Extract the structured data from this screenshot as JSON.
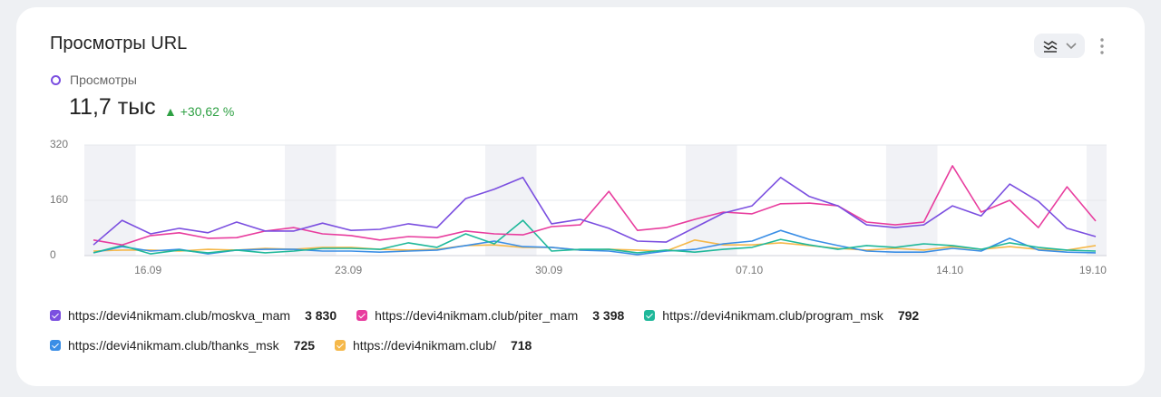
{
  "header": {
    "title": "Просмотры URL",
    "metric": "Просмотры",
    "metric_value": "11,7 тыс",
    "change": "+30,62 %"
  },
  "chart_data": {
    "type": "line",
    "categories": [
      null,
      null,
      "16.09",
      null,
      null,
      null,
      null,
      null,
      null,
      "23.09",
      null,
      null,
      null,
      null,
      null,
      null,
      "30.09",
      null,
      null,
      null,
      null,
      null,
      null,
      "07.10",
      null,
      null,
      null,
      null,
      null,
      null,
      "14.10",
      null,
      null,
      null,
      null,
      "19.10"
    ],
    "ylim": [
      0,
      320
    ],
    "yticks": [
      0,
      160,
      320
    ],
    "grid": true,
    "series": [
      {
        "name": "https://devi4nikmam.club/moskva_mam",
        "color": "#7b4fe0",
        "total": "3 830",
        "values": [
          31,
          102,
          63,
          79,
          66,
          97,
          71,
          71,
          94,
          73,
          76,
          92,
          81,
          165,
          192,
          226,
          92,
          105,
          79,
          42,
          39,
          81,
          123,
          144,
          226,
          171,
          144,
          89,
          81,
          89,
          144,
          115,
          207,
          157,
          79,
          55
        ]
      },
      {
        "name": "https://devi4nikmam.club/piter_mam",
        "color": "#e83d9e",
        "total": "3 398",
        "values": [
          45,
          31,
          58,
          66,
          50,
          52,
          71,
          81,
          63,
          58,
          45,
          55,
          52,
          71,
          63,
          60,
          84,
          89,
          186,
          73,
          81,
          105,
          126,
          121,
          150,
          152,
          144,
          97,
          89,
          97,
          260,
          126,
          160,
          81,
          199,
          100
        ]
      },
      {
        "name": "https://devi4nikmam.club/program_msk",
        "color": "#1fb89a",
        "total": "792",
        "values": [
          8,
          29,
          5,
          16,
          8,
          16,
          8,
          13,
          21,
          21,
          18,
          37,
          24,
          63,
          34,
          102,
          13,
          18,
          18,
          8,
          16,
          10,
          18,
          24,
          47,
          31,
          18,
          29,
          24,
          34,
          29,
          18,
          37,
          24,
          16,
          13
        ]
      },
      {
        "name": "https://devi4nikmam.club/thanks_msk",
        "color": "#3a8ee6",
        "total": "725",
        "values": [
          8,
          26,
          13,
          18,
          5,
          16,
          18,
          18,
          13,
          13,
          10,
          13,
          16,
          29,
          42,
          26,
          24,
          16,
          13,
          3,
          13,
          18,
          34,
          42,
          73,
          47,
          29,
          13,
          10,
          10,
          21,
          13,
          50,
          16,
          10,
          8
        ]
      },
      {
        "name": "https://devi4nikmam.club/",
        "color": "#f5b84a",
        "total": "718",
        "values": [
          13,
          16,
          16,
          13,
          18,
          16,
          21,
          18,
          24,
          24,
          18,
          16,
          18,
          29,
          31,
          24,
          24,
          16,
          18,
          16,
          13,
          45,
          31,
          31,
          37,
          29,
          21,
          16,
          21,
          16,
          26,
          18,
          26,
          18,
          16,
          29
        ]
      }
    ]
  }
}
